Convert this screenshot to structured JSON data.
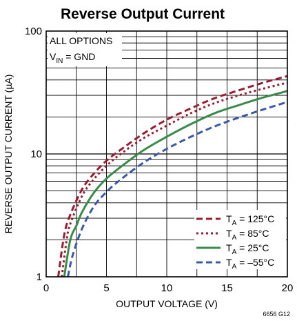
{
  "chart_data": {
    "type": "line",
    "title": "Reverse Output Current",
    "xlabel": "OUTPUT VOLTAGE (V)",
    "ylabel": "REVERSE OUTPUT CURRENT (µA)",
    "xlim": [
      0,
      20
    ],
    "ylim": [
      1,
      100
    ],
    "yscale": "log",
    "grid": true,
    "x_ticks": [
      "0",
      "5",
      "10",
      "15",
      "20"
    ],
    "y_ticks": [
      "1",
      "10",
      "100"
    ],
    "annotations": {
      "line1": "ALL OPTIONS",
      "line2_main": "V",
      "line2_sub": "IN",
      "line2_rest": " = GND"
    },
    "legend_position": "bottom-right",
    "footnote": "6656 G12",
    "series": [
      {
        "legend_main": "T",
        "legend_sub": "A",
        "legend_rest": " = 125°C",
        "color": "#9b1c2e",
        "dash": "dashed",
        "x": [
          1.0,
          1.5,
          2,
          3,
          4,
          5,
          6,
          8,
          10,
          12,
          14,
          16,
          18,
          20
        ],
        "y": [
          1.0,
          2.2,
          3.2,
          5.2,
          7.0,
          8.8,
          10.5,
          14.5,
          19.0,
          23.5,
          28.5,
          33.0,
          38.0,
          43.0
        ]
      },
      {
        "legend_main": "T",
        "legend_sub": "A",
        "legend_rest": " = 85°C",
        "color": "#9b1c2e",
        "dash": "dotted",
        "x": [
          1.3,
          1.7,
          2,
          3,
          4,
          5,
          6,
          8,
          10,
          12,
          14,
          16,
          18,
          20
        ],
        "y": [
          1.0,
          2.0,
          2.7,
          4.6,
          6.3,
          8.0,
          9.7,
          13.3,
          17.0,
          21.5,
          26.0,
          30.0,
          34.0,
          38.0
        ]
      },
      {
        "legend_main": "T",
        "legend_sub": "A",
        "legend_rest": " = 25°C",
        "color": "#3a8a4a",
        "dash": "solid",
        "x": [
          1.5,
          2,
          2.5,
          3,
          4,
          5,
          6,
          8,
          10,
          12,
          14,
          16,
          18,
          20
        ],
        "y": [
          1.0,
          2.0,
          2.6,
          3.4,
          4.9,
          6.3,
          7.6,
          10.6,
          13.8,
          17.5,
          21.5,
          25.0,
          28.8,
          32.5
        ]
      },
      {
        "legend_main": "T",
        "legend_sub": "A",
        "legend_rest": " = –55°C",
        "color": "#3a5aa8",
        "dash": "dashed",
        "x": [
          1.8,
          2.2,
          3,
          4,
          5,
          6,
          8,
          10,
          12,
          14,
          16,
          18,
          20
        ],
        "y": [
          1.0,
          1.5,
          2.5,
          3.8,
          4.9,
          6.0,
          8.4,
          11.0,
          13.8,
          16.8,
          19.8,
          23.0,
          26.5
        ]
      }
    ]
  }
}
